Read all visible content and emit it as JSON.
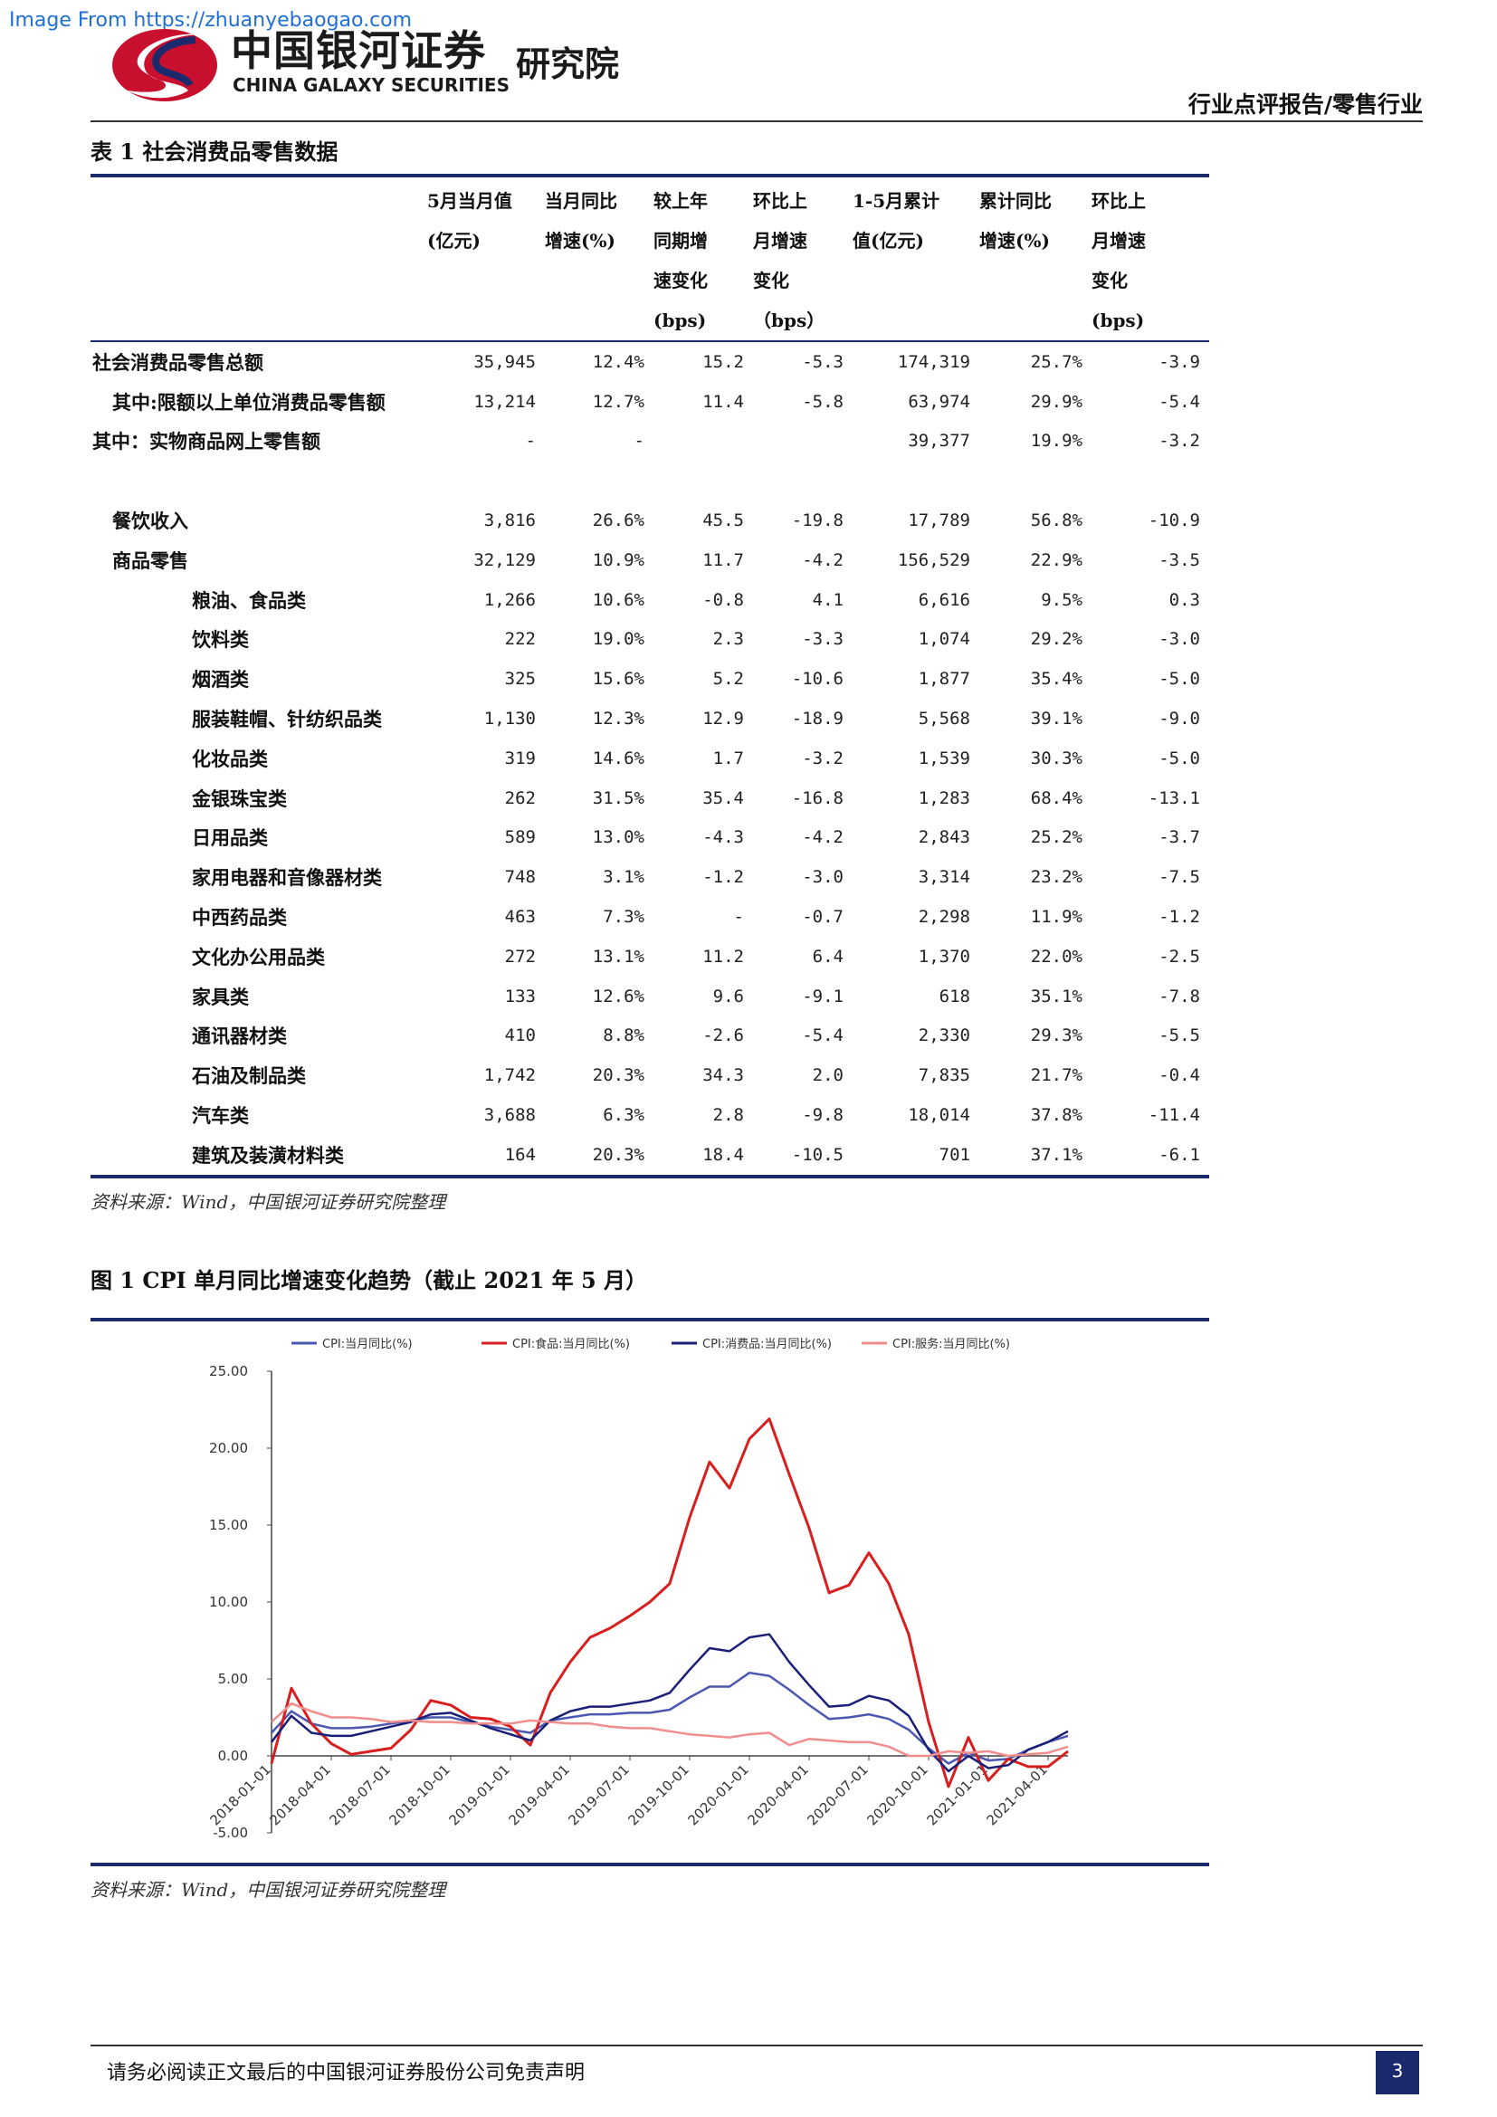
{
  "watermark": "Image From https://zhuanyebaogao.com",
  "header": {
    "logo_cn": "中国银河证券",
    "logo_en": "CHINA GALAXY SECURITIES",
    "institute": "研究院",
    "report_type": "行业点评报告/零售行业"
  },
  "table": {
    "title": "表 1  社会消费品零售数据",
    "headers": [
      [
        "5月当月值",
        "(亿元)"
      ],
      [
        "当月同比",
        "增速(%)"
      ],
      [
        "较上年",
        "同期增",
        "速变化",
        "(bps)"
      ],
      [
        "环比上",
        "月增速",
        "变化",
        "（bps）"
      ],
      [
        "1-5月累计",
        "值(亿元)"
      ],
      [
        "累计同比",
        "增速(%)"
      ],
      [
        "环比上",
        "月增速",
        "变化",
        "(bps)"
      ]
    ],
    "rows": [
      {
        "label": "社会消费品零售总额",
        "indent": 0,
        "values": [
          "35,945",
          "12.4%",
          "15.2",
          "-5.3",
          "174,319",
          "25.7%",
          "-3.9"
        ]
      },
      {
        "label": "其中:限额以上单位消费品零售额",
        "indent": 1,
        "values": [
          "13,214",
          "12.7%",
          "11.4",
          "-5.8",
          "63,974",
          "29.9%",
          "-5.4"
        ]
      },
      {
        "label": "其中：实物商品网上零售额",
        "indent": 0,
        "values": [
          "-",
          "-",
          "",
          "",
          "39,377",
          "19.9%",
          "-3.2"
        ]
      },
      {
        "label": "",
        "indent": 0,
        "values": [
          "",
          "",
          "",
          "",
          "",
          "",
          ""
        ]
      },
      {
        "label": "餐饮收入",
        "indent": 1,
        "values": [
          "3,816",
          "26.6%",
          "45.5",
          "-19.8",
          "17,789",
          "56.8%",
          "-10.9"
        ]
      },
      {
        "label": "商品零售",
        "indent": 1,
        "values": [
          "32,129",
          "10.9%",
          "11.7",
          "-4.2",
          "156,529",
          "22.9%",
          "-3.5"
        ]
      },
      {
        "label": "粮油、食品类",
        "indent": 2,
        "values": [
          "1,266",
          "10.6%",
          "-0.8",
          "4.1",
          "6,616",
          "9.5%",
          "0.3"
        ]
      },
      {
        "label": "饮料类",
        "indent": 2,
        "values": [
          "222",
          "19.0%",
          "2.3",
          "-3.3",
          "1,074",
          "29.2%",
          "-3.0"
        ]
      },
      {
        "label": "烟酒类",
        "indent": 2,
        "values": [
          "325",
          "15.6%",
          "5.2",
          "-10.6",
          "1,877",
          "35.4%",
          "-5.0"
        ]
      },
      {
        "label": "服装鞋帽、针纺织品类",
        "indent": 2,
        "values": [
          "1,130",
          "12.3%",
          "12.9",
          "-18.9",
          "5,568",
          "39.1%",
          "-9.0"
        ]
      },
      {
        "label": "化妆品类",
        "indent": 2,
        "values": [
          "319",
          "14.6%",
          "1.7",
          "-3.2",
          "1,539",
          "30.3%",
          "-5.0"
        ]
      },
      {
        "label": "金银珠宝类",
        "indent": 2,
        "values": [
          "262",
          "31.5%",
          "35.4",
          "-16.8",
          "1,283",
          "68.4%",
          "-13.1"
        ]
      },
      {
        "label": "日用品类",
        "indent": 2,
        "values": [
          "589",
          "13.0%",
          "-4.3",
          "-4.2",
          "2,843",
          "25.2%",
          "-3.7"
        ]
      },
      {
        "label": "家用电器和音像器材类",
        "indent": 2,
        "values": [
          "748",
          "3.1%",
          "-1.2",
          "-3.0",
          "3,314",
          "23.2%",
          "-7.5"
        ]
      },
      {
        "label": "中西药品类",
        "indent": 2,
        "values": [
          "463",
          "7.3%",
          "-",
          "-0.7",
          "2,298",
          "11.9%",
          "-1.2"
        ]
      },
      {
        "label": "文化办公用品类",
        "indent": 2,
        "values": [
          "272",
          "13.1%",
          "11.2",
          "6.4",
          "1,370",
          "22.0%",
          "-2.5"
        ]
      },
      {
        "label": "家具类",
        "indent": 2,
        "values": [
          "133",
          "12.6%",
          "9.6",
          "-9.1",
          "618",
          "35.1%",
          "-7.8"
        ]
      },
      {
        "label": "通讯器材类",
        "indent": 2,
        "values": [
          "410",
          "8.8%",
          "-2.6",
          "-5.4",
          "2,330",
          "29.3%",
          "-5.5"
        ]
      },
      {
        "label": "石油及制品类",
        "indent": 2,
        "values": [
          "1,742",
          "20.3%",
          "34.3",
          "2.0",
          "7,835",
          "21.7%",
          "-0.4"
        ]
      },
      {
        "label": "汽车类",
        "indent": 2,
        "values": [
          "3,688",
          "6.3%",
          "2.8",
          "-9.8",
          "18,014",
          "37.8%",
          "-11.4"
        ]
      },
      {
        "label": "建筑及装潢材料类",
        "indent": 2,
        "values": [
          "164",
          "20.3%",
          "18.4",
          "-10.5",
          "701",
          "37.1%",
          "-6.1"
        ]
      }
    ],
    "source": "资料来源：Wind，中国银河证券研究院整理"
  },
  "figure": {
    "title": "图 1 CPI 单月同比增速变化趋势（截止 2021 年 5 月）",
    "source": "资料来源：Wind，中国银河证券研究院整理"
  },
  "chart_data": {
    "type": "line",
    "x": [
      "2018-01",
      "2018-02",
      "2018-03",
      "2018-04",
      "2018-05",
      "2018-06",
      "2018-07",
      "2018-08",
      "2018-09",
      "2018-10",
      "2018-11",
      "2018-12",
      "2019-01",
      "2019-02",
      "2019-03",
      "2019-04",
      "2019-05",
      "2019-06",
      "2019-07",
      "2019-08",
      "2019-09",
      "2019-10",
      "2019-11",
      "2019-12",
      "2020-01",
      "2020-02",
      "2020-03",
      "2020-04",
      "2020-05",
      "2020-06",
      "2020-07",
      "2020-08",
      "2020-09",
      "2020-10",
      "2020-11",
      "2020-12",
      "2021-01",
      "2021-02",
      "2021-03",
      "2021-04",
      "2021-05"
    ],
    "x_ticks": [
      "2018-01-01",
      "2018-04-01",
      "2018-07-01",
      "2018-10-01",
      "2019-01-01",
      "2019-04-01",
      "2019-07-01",
      "2019-10-01",
      "2020-01-01",
      "2020-04-01",
      "2020-07-01",
      "2020-10-01",
      "2021-01-01",
      "2021-04-01"
    ],
    "y_ticks": [
      "25.00",
      "20.00",
      "15.00",
      "10.00",
      "5.00",
      "0.00",
      "-5.00"
    ],
    "ylim": [
      -5,
      25
    ],
    "series": [
      {
        "name": "CPI:当月同比(%)",
        "color": "#4b57b0",
        "values": [
          1.5,
          2.9,
          2.1,
          1.8,
          1.8,
          1.9,
          2.1,
          2.3,
          2.5,
          2.5,
          2.2,
          1.9,
          1.7,
          1.5,
          2.3,
          2.5,
          2.7,
          2.7,
          2.8,
          2.8,
          3.0,
          3.8,
          4.5,
          4.5,
          5.4,
          5.2,
          4.3,
          3.3,
          2.4,
          2.5,
          2.7,
          2.4,
          1.7,
          0.5,
          -0.5,
          0.2,
          -0.3,
          -0.2,
          0.4,
          0.9,
          1.3
        ]
      },
      {
        "name": "CPI:食品:当月同比(%)",
        "color": "#d81e1e",
        "values": [
          -0.5,
          4.4,
          2.1,
          0.8,
          0.1,
          0.3,
          0.5,
          1.7,
          3.6,
          3.3,
          2.5,
          2.4,
          1.9,
          0.7,
          4.1,
          6.1,
          7.7,
          8.3,
          9.1,
          10.0,
          11.2,
          15.5,
          19.1,
          17.4,
          20.6,
          21.9,
          18.3,
          14.8,
          10.6,
          11.1,
          13.2,
          11.2,
          7.9,
          2.2,
          -2.0,
          1.2,
          -1.6,
          -0.2,
          -0.7,
          -0.7,
          0.3
        ]
      },
      {
        "name": "CPI:消费品:当月同比(%)",
        "color": "#1a1f78",
        "values": [
          0.9,
          2.6,
          1.5,
          1.3,
          1.3,
          1.6,
          1.9,
          2.2,
          2.7,
          2.8,
          2.3,
          1.8,
          1.4,
          1.0,
          2.3,
          2.9,
          3.2,
          3.2,
          3.4,
          3.6,
          4.1,
          5.6,
          7.0,
          6.8,
          7.7,
          7.9,
          6.1,
          4.6,
          3.2,
          3.3,
          3.9,
          3.6,
          2.6,
          0.4,
          -1.0,
          0.0,
          -0.8,
          -0.6,
          0.4,
          0.9,
          1.6
        ]
      },
      {
        "name": "CPI:服务:当月同比(%)",
        "color": "#f08d8d",
        "values": [
          2.2,
          3.4,
          2.9,
          2.5,
          2.5,
          2.4,
          2.2,
          2.3,
          2.2,
          2.2,
          2.1,
          2.1,
          2.1,
          2.3,
          2.2,
          2.1,
          2.1,
          1.9,
          1.8,
          1.8,
          1.6,
          1.4,
          1.3,
          1.2,
          1.4,
          1.5,
          0.7,
          1.1,
          1.0,
          0.9,
          0.9,
          0.6,
          0.0,
          0.0,
          0.3,
          0.2,
          0.3,
          0.0,
          0.1,
          0.2,
          0.6
        ]
      }
    ],
    "legend_position": "top"
  },
  "footer": {
    "disclaimer": "请务必阅读正文最后的中国银河证券股份公司免责声明",
    "page": "3"
  }
}
